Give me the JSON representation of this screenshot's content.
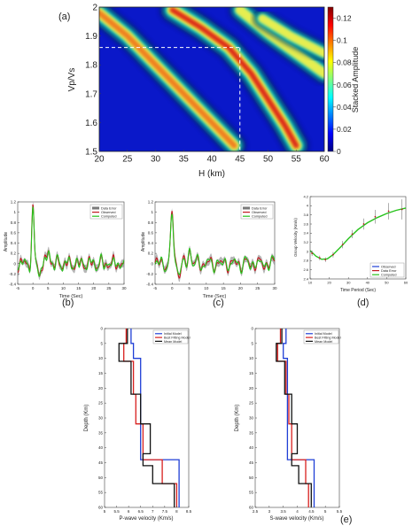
{
  "chart_data": [
    {
      "panel": "(a)",
      "type": "heatmap",
      "xlabel": "H (km)",
      "ylabel": "Vp/Vs",
      "xticks": [
        "20",
        "25",
        "30",
        "35",
        "40",
        "45",
        "50",
        "55",
        "60"
      ],
      "yticks": [
        "1.5",
        "1.6",
        "1.7",
        "1.8",
        "1.9",
        "2"
      ],
      "xlim": [
        20,
        60
      ],
      "ylim": [
        1.5,
        2.0
      ],
      "colorbar_label": "Stacked Amplitude",
      "colorbar_ticks": [
        "0",
        "0.02",
        "0.04",
        "0.06",
        "0.08",
        "0.1",
        "0.12"
      ],
      "colorbar_range": [
        0,
        0.13
      ],
      "best_fit": {
        "H": 45,
        "vpvs": 1.86
      },
      "ridges": [
        {
          "amp": 0.11,
          "points": [
            [
              20,
              1.98
            ],
            [
              25,
              1.9
            ],
            [
              30,
              1.8
            ],
            [
              35,
              1.7
            ],
            [
              40,
              1.6
            ],
            [
              44,
              1.52
            ]
          ]
        },
        {
          "amp": 0.13,
          "points": [
            [
              33,
              1.99
            ],
            [
              38,
              1.93
            ],
            [
              43,
              1.86
            ],
            [
              47,
              1.77
            ],
            [
              50,
              1.68
            ],
            [
              53,
              1.59
            ],
            [
              55,
              1.52
            ]
          ]
        },
        {
          "amp": 0.09,
          "points": [
            [
              45,
              1.99
            ],
            [
              50,
              1.91
            ],
            [
              55,
              1.84
            ],
            [
              60,
              1.77
            ]
          ]
        },
        {
          "amp": 0.06,
          "points": [
            [
              49,
              1.96
            ],
            [
              54,
              1.9
            ],
            [
              60,
              1.84
            ]
          ]
        }
      ]
    },
    {
      "panel": "(b)",
      "type": "line",
      "xlabel": "Time (Sec)",
      "ylabel": "Amplitude",
      "xticks": [
        "-5",
        "0",
        "5",
        "10",
        "15",
        "20",
        "25",
        "30"
      ],
      "yticks": [
        "-0.4",
        "-0.2",
        "0",
        "0.2",
        "0.4",
        "0.6",
        "0.8",
        "1",
        "1.2"
      ],
      "xlim": [
        -5,
        30
      ],
      "ylim": [
        -0.4,
        1.2
      ],
      "legend": [
        "Data Error",
        "Observed",
        "Computed"
      ],
      "peak": {
        "x": 0,
        "y": 1.02
      }
    },
    {
      "panel": "(c)",
      "type": "line",
      "xlabel": "Time (Sec)",
      "ylabel": "Amplitude",
      "xticks": [
        "-5",
        "0",
        "5",
        "10",
        "15",
        "20",
        "25",
        "30"
      ],
      "yticks": [
        "-0.4",
        "-0.2",
        "0",
        "0.2",
        "0.4",
        "0.6",
        "0.8",
        "1",
        "1.2"
      ],
      "xlim": [
        -5,
        30
      ],
      "ylim": [
        -0.4,
        1.2
      ],
      "legend": [
        "Data Error",
        "Observed",
        "Computed"
      ],
      "peak": {
        "x": 0,
        "y": 1.0
      }
    },
    {
      "panel": "(d)",
      "type": "line",
      "xlabel": "Time Period (Sec)",
      "ylabel": "Group Velocity (Km/s)",
      "xticks": [
        "10",
        "20",
        "30",
        "40",
        "50",
        "60"
      ],
      "yticks": [
        "2.4",
        "2.6",
        "2.8",
        "3",
        "3.2",
        "3.4",
        "3.6",
        "3.8",
        "4",
        "4.2"
      ],
      "xlim": [
        10,
        60
      ],
      "ylim": [
        2.4,
        4.2
      ],
      "legend": [
        "Observed",
        "Data Error",
        "Computed"
      ],
      "x": [
        11,
        15,
        18,
        22,
        27,
        32,
        38,
        44,
        51,
        58
      ],
      "observed": [
        2.96,
        2.86,
        2.82,
        2.93,
        3.15,
        3.38,
        3.6,
        3.76,
        3.88,
        3.92
      ],
      "error": [
        0.06,
        0.05,
        0.05,
        0.06,
        0.08,
        0.09,
        0.12,
        0.15,
        0.18,
        0.22
      ],
      "computed_x": [
        10,
        13,
        16,
        19,
        22,
        26,
        30,
        35,
        40,
        45,
        50,
        55,
        60
      ],
      "computed": [
        3.02,
        2.9,
        2.83,
        2.84,
        2.93,
        3.1,
        3.28,
        3.48,
        3.63,
        3.74,
        3.83,
        3.9,
        3.95
      ]
    },
    {
      "panel": "(e)",
      "type": "line",
      "xlabel": "P-wave velocity (Km/s)",
      "ylabel": "Depth (Km)",
      "xticks": [
        "5",
        "5.5",
        "6",
        "6.5",
        "7",
        "7.5",
        "8",
        "8.5"
      ],
      "yticks": [
        "0",
        "5",
        "10",
        "15",
        "20",
        "25",
        "30",
        "35",
        "40",
        "45",
        "50",
        "55",
        "60"
      ],
      "xlim": [
        5,
        8.5
      ],
      "ylim": [
        60,
        0
      ],
      "legend": [
        "Initial Model",
        "Best Fitting Model",
        "Mean Model"
      ],
      "initial": [
        [
          6.1,
          0
        ],
        [
          6.1,
          5
        ],
        [
          6.2,
          5
        ],
        [
          6.2,
          10
        ],
        [
          6.5,
          10
        ],
        [
          6.5,
          44
        ],
        [
          8.1,
          44
        ],
        [
          8.1,
          60
        ]
      ],
      "best": [
        [
          5.9,
          0
        ],
        [
          5.9,
          5
        ],
        [
          5.8,
          5
        ],
        [
          5.8,
          11
        ],
        [
          6.2,
          11
        ],
        [
          6.2,
          22
        ],
        [
          6.3,
          22
        ],
        [
          6.3,
          32
        ],
        [
          6.6,
          32
        ],
        [
          6.6,
          44
        ],
        [
          7.4,
          44
        ],
        [
          7.4,
          52
        ],
        [
          8.0,
          52
        ],
        [
          8.0,
          60
        ]
      ],
      "mean": [
        [
          5.95,
          0
        ],
        [
          5.95,
          5
        ],
        [
          5.6,
          5
        ],
        [
          5.6,
          11
        ],
        [
          6.1,
          11
        ],
        [
          6.1,
          22
        ],
        [
          6.5,
          22
        ],
        [
          6.5,
          32
        ],
        [
          6.9,
          32
        ],
        [
          6.9,
          42
        ],
        [
          6.6,
          42
        ],
        [
          6.6,
          46
        ],
        [
          7.0,
          46
        ],
        [
          7.0,
          52
        ],
        [
          7.9,
          52
        ],
        [
          7.9,
          60
        ]
      ]
    },
    {
      "panel": "(e)",
      "type": "line",
      "xlabel": "S-wave velocity (Km/s)",
      "ylabel": "Depth (Km)",
      "xticks": [
        "2.5",
        "3",
        "3.5",
        "4",
        "4.5",
        "5",
        "5.5"
      ],
      "yticks": [
        "0",
        "5",
        "10",
        "15",
        "20",
        "25",
        "30",
        "35",
        "40",
        "45",
        "50",
        "55",
        "60"
      ],
      "xlim": [
        2.5,
        5.5
      ],
      "ylim": [
        60,
        0
      ],
      "legend": [
        "Initial Model",
        "Best Fitting Model",
        "Mean Model"
      ],
      "initial": [
        [
          3.6,
          0
        ],
        [
          3.6,
          5
        ],
        [
          3.5,
          5
        ],
        [
          3.5,
          10
        ],
        [
          3.65,
          10
        ],
        [
          3.65,
          44
        ],
        [
          4.6,
          44
        ],
        [
          4.6,
          60
        ]
      ],
      "best": [
        [
          3.4,
          0
        ],
        [
          3.4,
          5
        ],
        [
          3.3,
          5
        ],
        [
          3.3,
          11
        ],
        [
          3.6,
          11
        ],
        [
          3.6,
          22
        ],
        [
          3.7,
          22
        ],
        [
          3.7,
          32
        ],
        [
          3.8,
          32
        ],
        [
          3.8,
          44
        ],
        [
          4.3,
          44
        ],
        [
          4.3,
          52
        ],
        [
          4.4,
          52
        ],
        [
          4.4,
          60
        ]
      ],
      "mean": [
        [
          3.45,
          0
        ],
        [
          3.45,
          5
        ],
        [
          3.25,
          5
        ],
        [
          3.25,
          11
        ],
        [
          3.55,
          11
        ],
        [
          3.55,
          22
        ],
        [
          3.8,
          22
        ],
        [
          3.8,
          32
        ],
        [
          4.0,
          32
        ],
        [
          4.0,
          42
        ],
        [
          3.8,
          42
        ],
        [
          3.8,
          46
        ],
        [
          4.05,
          46
        ],
        [
          4.05,
          52
        ],
        [
          4.5,
          52
        ],
        [
          4.5,
          60
        ]
      ]
    }
  ],
  "panel_labels": [
    "(a)",
    "(b)",
    "(c)",
    "(d)",
    "(e)"
  ],
  "colors": {
    "initial": "#1f3fd6",
    "best": "#d8201e",
    "mean": "#111111",
    "computed": "#27c21b",
    "observed": "#c0181f",
    "error": "#7a7a7a",
    "dashed": "#ffffff"
  }
}
